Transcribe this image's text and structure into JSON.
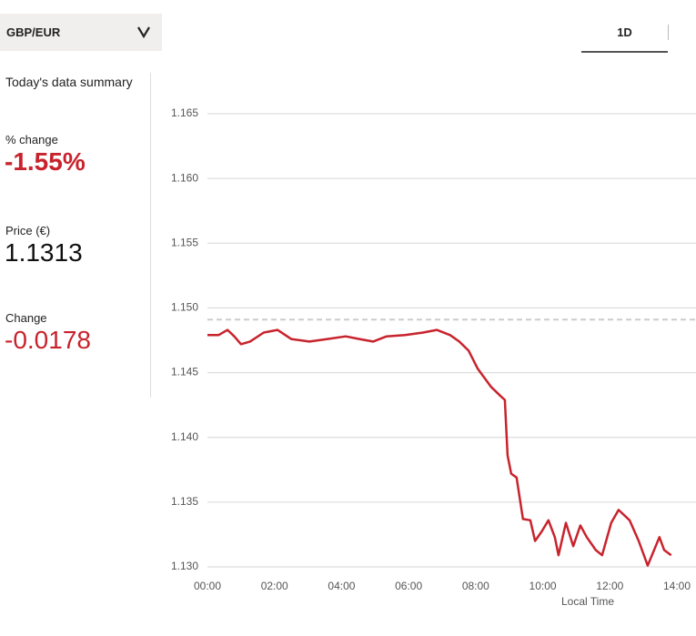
{
  "selector": "GBP/EUR",
  "tab": "1D",
  "summary": {
    "title": "Today's data summary",
    "items": [
      {
        "label": "% change",
        "value": "-1.55%"
      },
      {
        "label": "Price (€)",
        "value": "1.1313"
      },
      {
        "label": "Change",
        "value": "-0.0178"
      }
    ]
  },
  "chart_data": {
    "type": "line",
    "x_label": "Local Time",
    "x": [
      0,
      0.33,
      0.6,
      0.8,
      1.0,
      1.27,
      1.68,
      2.09,
      2.5,
      3.04,
      3.58,
      4.12,
      4.53,
      4.94,
      5.34,
      5.89,
      6.43,
      6.84,
      7.24,
      7.51,
      7.79,
      8.06,
      8.46,
      8.74,
      8.87,
      8.95,
      9.06,
      9.22,
      9.41,
      9.63,
      9.77,
      9.96,
      10.17,
      10.36,
      10.47,
      10.69,
      10.91,
      11.12,
      11.31,
      11.58,
      11.77,
      12.04,
      12.26,
      12.59,
      12.86,
      13.13,
      13.48,
      13.62,
      13.83
    ],
    "series": [
      {
        "color": "#c8232c",
        "values": [
          1.1479,
          1.1479,
          1.1483,
          1.1478,
          1.1472,
          1.1474,
          1.1481,
          1.1483,
          1.1476,
          1.1474,
          1.1476,
          1.1478,
          1.1476,
          1.1474,
          1.1478,
          1.1479,
          1.1481,
          1.1483,
          1.1479,
          1.1474,
          1.1467,
          1.1453,
          1.1439,
          1.1432,
          1.1429,
          1.1386,
          1.1372,
          1.1369,
          1.1337,
          1.1336,
          1.132,
          1.1327,
          1.1336,
          1.1323,
          1.1309,
          1.1334,
          1.1316,
          1.1332,
          1.1323,
          1.1313,
          1.1309,
          1.1334,
          1.1344,
          1.1336,
          1.132,
          1.1301,
          1.1323,
          1.1313,
          1.1309
        ]
      }
    ],
    "reference_line": {
      "value": 1.1491,
      "color": "#cccccc"
    },
    "xlim": [
      0,
      14
    ],
    "xticks": [
      {
        "value": 0,
        "label": "00:00"
      },
      {
        "value": 2,
        "label": "02:00"
      },
      {
        "value": 4,
        "label": "04:00"
      },
      {
        "value": 6,
        "label": "06:00"
      },
      {
        "value": 8,
        "label": "08:00"
      },
      {
        "value": 10,
        "label": "10:00"
      },
      {
        "value": 12,
        "label": "12:00"
      },
      {
        "value": 14,
        "label": "14:00"
      }
    ],
    "ylim": [
      1.13,
      1.165
    ],
    "yticks": [
      {
        "value": 1.13,
        "label": "1.130"
      },
      1.135,
      {
        "value": 1.14,
        "label": "1.140"
      },
      1.145,
      {
        "value": 1.15,
        "label": "1.150"
      },
      1.155,
      {
        "value": 1.16,
        "label": "1.160"
      },
      1.165
    ],
    "grid": true
  }
}
